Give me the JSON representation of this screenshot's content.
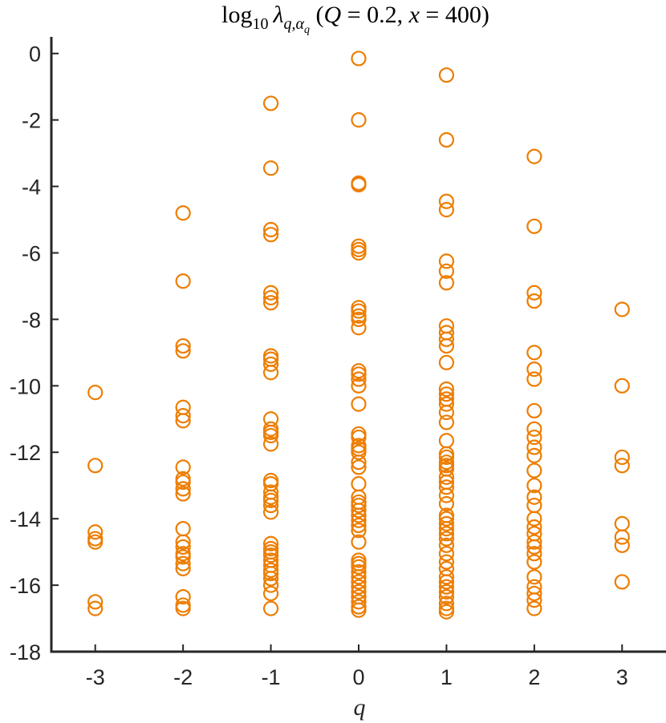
{
  "chart_data": {
    "type": "scatter",
    "title": {
      "prefix": "log",
      "log_base": "10",
      "lambda": "λ",
      "sub": "q,α",
      "subsub": "q",
      "params_open": " (",
      "param1": "Q",
      "eq1": " = 0.2, ",
      "param2": "x",
      "eq2": " = 400)"
    },
    "xlabel": "q",
    "ylabel": "",
    "xlim": [
      -3.5,
      3.5
    ],
    "ylim": [
      -18,
      0.5
    ],
    "xticks": [
      -3,
      -2,
      -1,
      0,
      1,
      2,
      3
    ],
    "xtick_labels": [
      "-3",
      "-2",
      "-1",
      "0",
      "1",
      "2",
      "3"
    ],
    "yticks": [
      0,
      -2,
      -4,
      -6,
      -8,
      -10,
      -12,
      -14,
      -16,
      -18
    ],
    "ytick_labels": [
      "0",
      "-2",
      "-4",
      "-6",
      "-8",
      "-10",
      "-12",
      "-14",
      "-16",
      "-18"
    ],
    "grid": false,
    "marker": "open-circle",
    "color": "#ED7D00",
    "series": [
      {
        "x": -3,
        "y": [
          -10.2,
          -12.4,
          -14.4,
          -14.6,
          -14.7,
          -16.5,
          -16.7
        ]
      },
      {
        "x": -2,
        "y": [
          -4.8,
          -6.85,
          -8.8,
          -8.95,
          -10.65,
          -10.9,
          -11.05,
          -12.45,
          -12.8,
          -12.9,
          -13.1,
          -13.25,
          -14.3,
          -14.7,
          -14.85,
          -15.05,
          -15.15,
          -15.35,
          -15.5,
          -16.35,
          -16.6,
          -16.7
        ]
      },
      {
        "x": -1,
        "y": [
          -1.5,
          -3.45,
          -5.3,
          -5.45,
          -7.2,
          -7.35,
          -7.5,
          -9.1,
          -9.2,
          -9.35,
          -9.6,
          -11.0,
          -11.3,
          -11.4,
          -11.5,
          -11.75,
          -12.85,
          -12.95,
          -13.2,
          -13.35,
          -13.45,
          -13.6,
          -13.8,
          -14.75,
          -14.9,
          -15.0,
          -15.1,
          -15.25,
          -15.4,
          -15.55,
          -15.65,
          -15.8,
          -16.0,
          -16.25,
          -16.7
        ]
      },
      {
        "x": 0,
        "y": [
          -0.15,
          -2.0,
          -3.9,
          -3.95,
          -5.8,
          -5.9,
          -6.0,
          -7.65,
          -7.75,
          -7.9,
          -8.0,
          -8.25,
          -9.55,
          -9.65,
          -9.8,
          -10.0,
          -10.55,
          -11.45,
          -11.55,
          -11.8,
          -11.9,
          -12.0,
          -12.3,
          -12.45,
          -12.95,
          -13.35,
          -13.5,
          -13.6,
          -13.75,
          -13.9,
          -14.05,
          -14.2,
          -14.35,
          -14.7,
          -15.25,
          -15.35,
          -15.45,
          -15.6,
          -15.75,
          -15.9,
          -16.05,
          -16.2,
          -16.35,
          -16.5,
          -16.65,
          -16.75
        ]
      },
      {
        "x": 1,
        "y": [
          -0.65,
          -2.6,
          -4.45,
          -4.7,
          -6.25,
          -6.55,
          -6.9,
          -8.2,
          -8.4,
          -8.6,
          -8.8,
          -9.3,
          -10.1,
          -10.25,
          -10.4,
          -10.55,
          -10.8,
          -11.1,
          -11.65,
          -12.05,
          -12.15,
          -12.3,
          -12.4,
          -12.5,
          -12.75,
          -12.9,
          -13.05,
          -13.3,
          -13.55,
          -13.9,
          -14.0,
          -14.15,
          -14.3,
          -14.45,
          -14.6,
          -14.8,
          -15.05,
          -15.3,
          -15.5,
          -15.75,
          -15.9,
          -16.05,
          -16.2,
          -16.35,
          -16.55,
          -16.7,
          -16.8
        ]
      },
      {
        "x": 2,
        "y": [
          -3.1,
          -5.2,
          -7.2,
          -7.45,
          -9.0,
          -9.5,
          -9.8,
          -10.75,
          -11.3,
          -11.55,
          -11.85,
          -12.1,
          -12.55,
          -13.0,
          -13.35,
          -13.6,
          -14.0,
          -14.25,
          -14.45,
          -14.7,
          -14.85,
          -15.05,
          -15.3,
          -15.75,
          -16.05,
          -16.25,
          -16.45,
          -16.7
        ]
      },
      {
        "x": 3,
        "y": [
          -7.7,
          -10.0,
          -12.15,
          -12.4,
          -14.15,
          -14.55,
          -14.8,
          -15.9
        ]
      }
    ]
  }
}
